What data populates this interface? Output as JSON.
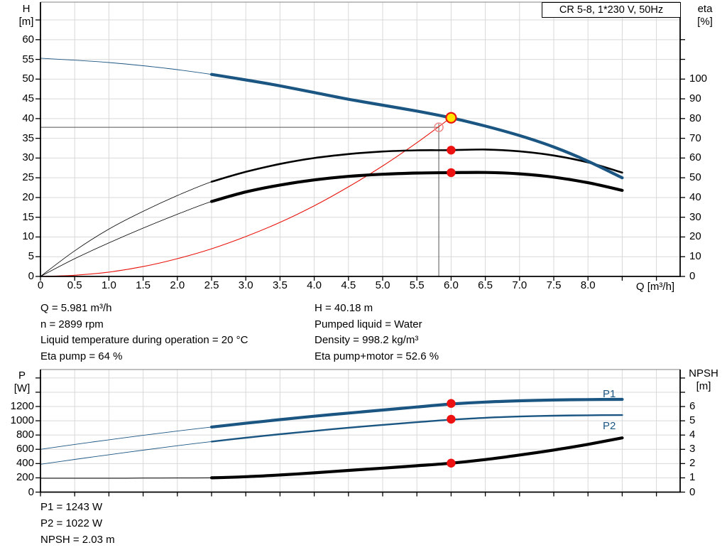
{
  "colors": {
    "curve_blue": "#1b5683",
    "curve_black": "#000000",
    "curve_red": "#e8140c",
    "marker_red": "#ee1111",
    "duty_fill": "#ffe400",
    "duty_ring": "#e8140c",
    "open_ring": "#f08b8b",
    "grid": "#d9d9d9",
    "border_gray": "#9a9a9a",
    "axis": "#000000",
    "crosshair": "#555555",
    "label_blue": "#1b5683"
  },
  "chart_data": [
    {
      "id": "qh_eta",
      "type": "line",
      "title": "CR 5-8, 1*230 V, 50Hz",
      "x_axis": {
        "title": "Q [m³/h]",
        "min": 0,
        "max": 9.35,
        "tick_values": [
          0,
          0.5,
          1,
          1.5,
          2,
          2.5,
          3,
          3.5,
          4,
          4.5,
          5,
          5.5,
          6,
          6.5,
          7,
          7.5,
          8
        ],
        "tick_labels": [
          "0",
          "0.5",
          "1.0",
          "1.5",
          "2.0",
          "2.5",
          "3.0",
          "3.5",
          "4.0",
          "4.5",
          "5.0",
          "5.5",
          "6.0",
          "6.5",
          "7.0",
          "7.5",
          "8.0"
        ],
        "unlabeled_ticks": [
          8.5,
          9
        ]
      },
      "left_axis": {
        "title_line1": "H",
        "title_line2": "[m]",
        "min": 0,
        "max": 69.5,
        "tick_values": [
          0,
          5,
          10,
          15,
          20,
          25,
          30,
          35,
          40,
          45,
          50,
          55,
          60
        ],
        "tick_labels": [
          "0",
          "5",
          "10",
          "15",
          "20",
          "25",
          "30",
          "35",
          "40",
          "45",
          "50",
          "55",
          "60"
        ],
        "unlabeled_ticks": [
          65
        ]
      },
      "right_axis": {
        "title_line1": "eta",
        "title_line2": "[%]",
        "min": 0,
        "max": 139,
        "tick_values": [
          0,
          10,
          20,
          30,
          40,
          50,
          60,
          70,
          80,
          90,
          100
        ],
        "tick_labels": [
          "0",
          "10",
          "20",
          "30",
          "40",
          "50",
          "60",
          "70",
          "80",
          "90",
          "100"
        ],
        "unlabeled_ticks": [
          110,
          120
        ]
      },
      "series": [
        {
          "key": "system",
          "label": "system curve",
          "axis": "left",
          "color": "#e8140c",
          "thin": 1.1,
          "thick": 1.1,
          "split": null,
          "points": [
            [
              0,
              0
            ],
            [
              0.5,
              0.3
            ],
            [
              1,
              1.1
            ],
            [
              1.5,
              2.5
            ],
            [
              2,
              4.5
            ],
            [
              2.5,
              7.0
            ],
            [
              3,
              10.1
            ],
            [
              3.5,
              13.7
            ],
            [
              4,
              17.9
            ],
            [
              4.5,
              22.7
            ],
            [
              5,
              28.0
            ],
            [
              5.5,
              33.9
            ],
            [
              6,
              40.3
            ]
          ]
        },
        {
          "key": "eta-pump",
          "label": "eta pump",
          "axis": "right",
          "color": "#000000",
          "thin": 0.8,
          "thick": 2.6,
          "split": 2.5,
          "points": [
            [
              0,
              0
            ],
            [
              0.5,
              13
            ],
            [
              1,
              24
            ],
            [
              1.5,
              33
            ],
            [
              2,
              41
            ],
            [
              2.5,
              48
            ],
            [
              3,
              53
            ],
            [
              3.5,
              57
            ],
            [
              4,
              60
            ],
            [
              4.5,
              62
            ],
            [
              5,
              63.3
            ],
            [
              5.5,
              63.9
            ],
            [
              6,
              64
            ],
            [
              6.5,
              64.3
            ],
            [
              7,
              63.4
            ],
            [
              7.5,
              61.3
            ],
            [
              8,
              57.8
            ],
            [
              8.5,
              52.6
            ]
          ]
        },
        {
          "key": "eta-pump-motor",
          "label": "eta pump+motor",
          "axis": "right",
          "color": "#000000",
          "thin": 0.8,
          "thick": 4.2,
          "split": 2.5,
          "points": [
            [
              0,
              0
            ],
            [
              0.5,
              9
            ],
            [
              1,
              17
            ],
            [
              1.5,
              24.5
            ],
            [
              2,
              31.5
            ],
            [
              2.5,
              38
            ],
            [
              3,
              42.8
            ],
            [
              3.5,
              46.3
            ],
            [
              4,
              48.9
            ],
            [
              4.5,
              50.7
            ],
            [
              5,
              51.8
            ],
            [
              5.5,
              52.4
            ],
            [
              6,
              52.6
            ],
            [
              6.5,
              52.7
            ],
            [
              7,
              52.0
            ],
            [
              7.5,
              50.3
            ],
            [
              8,
              47.5
            ],
            [
              8.5,
              43.6
            ]
          ]
        },
        {
          "key": "qh",
          "label": "H-Q",
          "axis": "left",
          "color": "#1b5683",
          "thin": 0.9,
          "thick": 4.2,
          "split": 2.5,
          "points": [
            [
              0,
              55.3
            ],
            [
              0.5,
              54.8
            ],
            [
              1,
              54.2
            ],
            [
              1.5,
              53.4
            ],
            [
              2,
              52.4
            ],
            [
              2.5,
              51.2
            ],
            [
              3,
              49.8
            ],
            [
              3.5,
              48.3
            ],
            [
              4,
              46.6
            ],
            [
              4.5,
              44.9
            ],
            [
              5,
              43.4
            ],
            [
              5.5,
              41.9
            ],
            [
              6,
              40.2
            ],
            [
              6.5,
              38.1
            ],
            [
              7,
              35.7
            ],
            [
              7.5,
              32.8
            ],
            [
              8,
              29.2
            ],
            [
              8.5,
              25.0
            ]
          ]
        }
      ],
      "crosshair": {
        "q": 5.82,
        "value": 37.8
      },
      "markers": [
        {
          "type": "open",
          "q": 5.82,
          "value": 37.8,
          "axis": "left"
        },
        {
          "type": "point",
          "q": 6.0,
          "value": 64,
          "axis": "right"
        },
        {
          "type": "point",
          "q": 6.0,
          "value": 52.6,
          "axis": "right"
        },
        {
          "type": "duty",
          "q": 6.0,
          "value": 40.2,
          "axis": "left"
        }
      ]
    },
    {
      "id": "p_npsh",
      "type": "line",
      "x_axis": {
        "title": "",
        "min": 0,
        "max": 9.35,
        "tick_values": [],
        "tick_labels": [],
        "unlabeled_ticks": [
          0,
          0.5,
          1,
          1.5,
          2,
          2.5,
          3,
          3.5,
          4,
          4.5,
          5,
          5.5,
          6,
          6.5,
          7,
          7.5,
          8,
          8.5,
          9
        ]
      },
      "left_axis": {
        "title_line1": "P",
        "title_line2": "[W]",
        "min": 0,
        "max": 1718,
        "tick_values": [
          0,
          200,
          400,
          600,
          800,
          1000,
          1200
        ],
        "tick_labels": [
          "0",
          "200",
          "400",
          "600",
          "800",
          "1000",
          "1200"
        ],
        "unlabeled_ticks": [
          1400,
          1600
        ]
      },
      "right_axis": {
        "title_line1": "NPSH",
        "title_line2": "[m]",
        "min": 0,
        "max": 8.6,
        "tick_values": [
          0,
          1,
          2,
          3,
          4,
          5,
          6
        ],
        "tick_labels": [
          "0",
          "1",
          "2",
          "3",
          "4",
          "5",
          "6"
        ],
        "unlabeled_ticks": [
          7,
          8
        ]
      },
      "series": [
        {
          "key": "p1",
          "label": "P1",
          "axis": "left",
          "color": "#1b5683",
          "thin": 0.9,
          "thick": 4.2,
          "split": 2.5,
          "points": [
            [
              0,
              600
            ],
            [
              0.5,
              668
            ],
            [
              1,
              733
            ],
            [
              1.5,
              796
            ],
            [
              2,
              856
            ],
            [
              2.5,
              912
            ],
            [
              3,
              965
            ],
            [
              3.5,
              1016
            ],
            [
              4,
              1064
            ],
            [
              4.5,
              1108
            ],
            [
              5,
              1150
            ],
            [
              5.5,
              1193
            ],
            [
              6,
              1235
            ],
            [
              6.5,
              1262
            ],
            [
              7,
              1280
            ],
            [
              7.5,
              1291
            ],
            [
              8,
              1297
            ],
            [
              8.5,
              1300
            ]
          ]
        },
        {
          "key": "p2",
          "label": "P2",
          "axis": "left",
          "color": "#1b5683",
          "thin": 0.9,
          "thick": 2.4,
          "split": 2.5,
          "points": [
            [
              0,
              390
            ],
            [
              0.5,
              458
            ],
            [
              1,
              524
            ],
            [
              1.5,
              588
            ],
            [
              2,
              650
            ],
            [
              2.5,
              708
            ],
            [
              3,
              762
            ],
            [
              3.5,
              812
            ],
            [
              4,
              858
            ],
            [
              4.5,
              902
            ],
            [
              5,
              942
            ],
            [
              5.5,
              980
            ],
            [
              6,
              1015
            ],
            [
              6.5,
              1042
            ],
            [
              7,
              1060
            ],
            [
              7.5,
              1071
            ],
            [
              8,
              1077
            ],
            [
              8.5,
              1080
            ]
          ]
        },
        {
          "key": "npsh",
          "label": "NPSH",
          "axis": "right",
          "color": "#000000",
          "thin": 1.0,
          "thick": 4.2,
          "split": 2.5,
          "points": [
            [
              0,
              0.97
            ],
            [
              0.5,
              0.97
            ],
            [
              1,
              0.97
            ],
            [
              1.5,
              0.98
            ],
            [
              2,
              0.99
            ],
            [
              2.5,
              1.0
            ],
            [
              3,
              1.08
            ],
            [
              3.5,
              1.2
            ],
            [
              4,
              1.35
            ],
            [
              4.5,
              1.52
            ],
            [
              5,
              1.68
            ],
            [
              5.5,
              1.85
            ],
            [
              6,
              2.03
            ],
            [
              6.5,
              2.28
            ],
            [
              7,
              2.6
            ],
            [
              7.5,
              2.95
            ],
            [
              8,
              3.35
            ],
            [
              8.5,
              3.8
            ]
          ]
        }
      ],
      "markers": [
        {
          "type": "point",
          "q": 6.0,
          "value": 1243,
          "axis": "left"
        },
        {
          "type": "point",
          "q": 6.0,
          "value": 1022,
          "axis": "left"
        },
        {
          "type": "point",
          "q": 6.0,
          "value": 2.03,
          "axis": "right"
        }
      ]
    }
  ],
  "info_top": {
    "left": [
      "Q = 5.981 m³/h",
      "n = 2899 rpm",
      "Liquid temperature during operation = 20 °C",
      "Eta pump = 64 %"
    ],
    "right": [
      "H = 40.18 m",
      "Pumped liquid = Water",
      "Density = 998.2 kg/m³",
      "Eta pump+motor = 52.6 %"
    ]
  },
  "info_bottom": [
    "P1 = 1243 W",
    "P2 = 1022 W",
    "NPSH = 2.03 m"
  ]
}
